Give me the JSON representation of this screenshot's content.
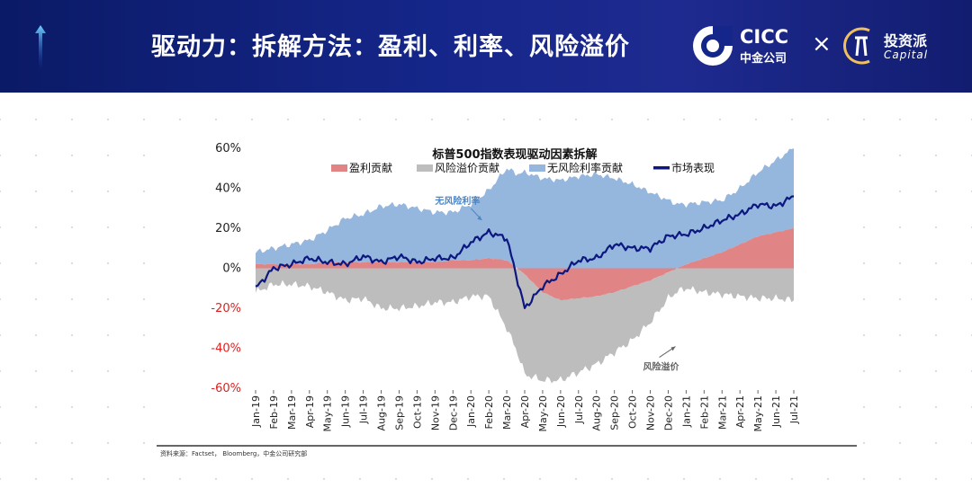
{
  "header": {
    "title": "驱动力：拆解方法：盈利、利率、风险溢价",
    "logo_main": "CICC",
    "logo_sub": "中金公司",
    "times": "×",
    "partner_main": "投资派",
    "partner_sub": "Capital"
  },
  "source": "资料来源：Factset， Bloomberg，中金公司研究部",
  "colors": {
    "earnings": "#e08486",
    "risk": "#bdbdbd",
    "rate": "#95b6dd",
    "market": "#0d1780",
    "header": "#15268a"
  },
  "chart_data": {
    "type": "area",
    "title": "标普500指数表现驱动因素拆解",
    "legend_position": "top",
    "xlabel": "",
    "ylabel": "",
    "ylim": [
      -60,
      60
    ],
    "yticks": [
      "60%",
      "40%",
      "20%",
      "0%",
      "-20%",
      "-40%",
      "-60%"
    ],
    "ytick_values": [
      60,
      40,
      20,
      0,
      -20,
      -40,
      -60
    ],
    "x": [
      "Jan-19",
      "Feb-19",
      "Mar-19",
      "Apr-19",
      "May-19",
      "Jun-19",
      "Jul-19",
      "Aug-19",
      "Sep-19",
      "Oct-19",
      "Nov-19",
      "Dec-19",
      "Jan-20",
      "Feb-20",
      "Mar-20",
      "Apr-20",
      "May-20",
      "Jun-20",
      "Jul-20",
      "Aug-20",
      "Sep-20",
      "Oct-20",
      "Nov-20",
      "Dec-20",
      "Jan-21",
      "Feb-21",
      "Mar-21",
      "Apr-21",
      "May-21",
      "Jun-21",
      "Jul-21"
    ],
    "series": [
      {
        "name": "盈利贡献",
        "values": [
          2,
          2,
          2,
          2,
          3,
          3,
          3,
          3,
          3,
          3,
          3,
          4,
          4,
          5,
          4,
          -3,
          -12,
          -16,
          -15,
          -14,
          -12,
          -9,
          -6,
          -2,
          2,
          5,
          8,
          12,
          16,
          18,
          20
        ]
      },
      {
        "name": "风险溢价贡献",
        "values": [
          -12,
          -8,
          -8,
          -9,
          -12,
          -16,
          -15,
          -20,
          -20,
          -19,
          -17,
          -17,
          -14,
          -14,
          -30,
          -50,
          -44,
          -40,
          -37,
          -34,
          -30,
          -27,
          -21,
          -13,
          -10,
          -12,
          -13,
          -14,
          -15,
          -15,
          -16
        ]
      },
      {
        "name": "无风险利率贡献",
        "values": [
          6,
          8,
          10,
          12,
          16,
          22,
          24,
          28,
          29,
          27,
          25,
          24,
          28,
          34,
          46,
          48,
          45,
          44,
          46,
          47,
          45,
          42,
          38,
          34,
          30,
          28,
          26,
          28,
          32,
          36,
          40
        ]
      },
      {
        "name": "市场表现",
        "values": [
          -10,
          0,
          2,
          5,
          3,
          2,
          6,
          3,
          6,
          3,
          5,
          5,
          13,
          18,
          15,
          -20,
          -9,
          -3,
          4,
          5,
          12,
          10,
          10,
          16,
          17,
          20,
          24,
          27,
          32,
          31,
          36
        ]
      }
    ],
    "annotations": [
      {
        "text": "无风险利率",
        "x": "Nov-19",
        "y": 34
      },
      {
        "text": "风险溢价",
        "x": "Nov-20",
        "y": -49
      }
    ]
  }
}
